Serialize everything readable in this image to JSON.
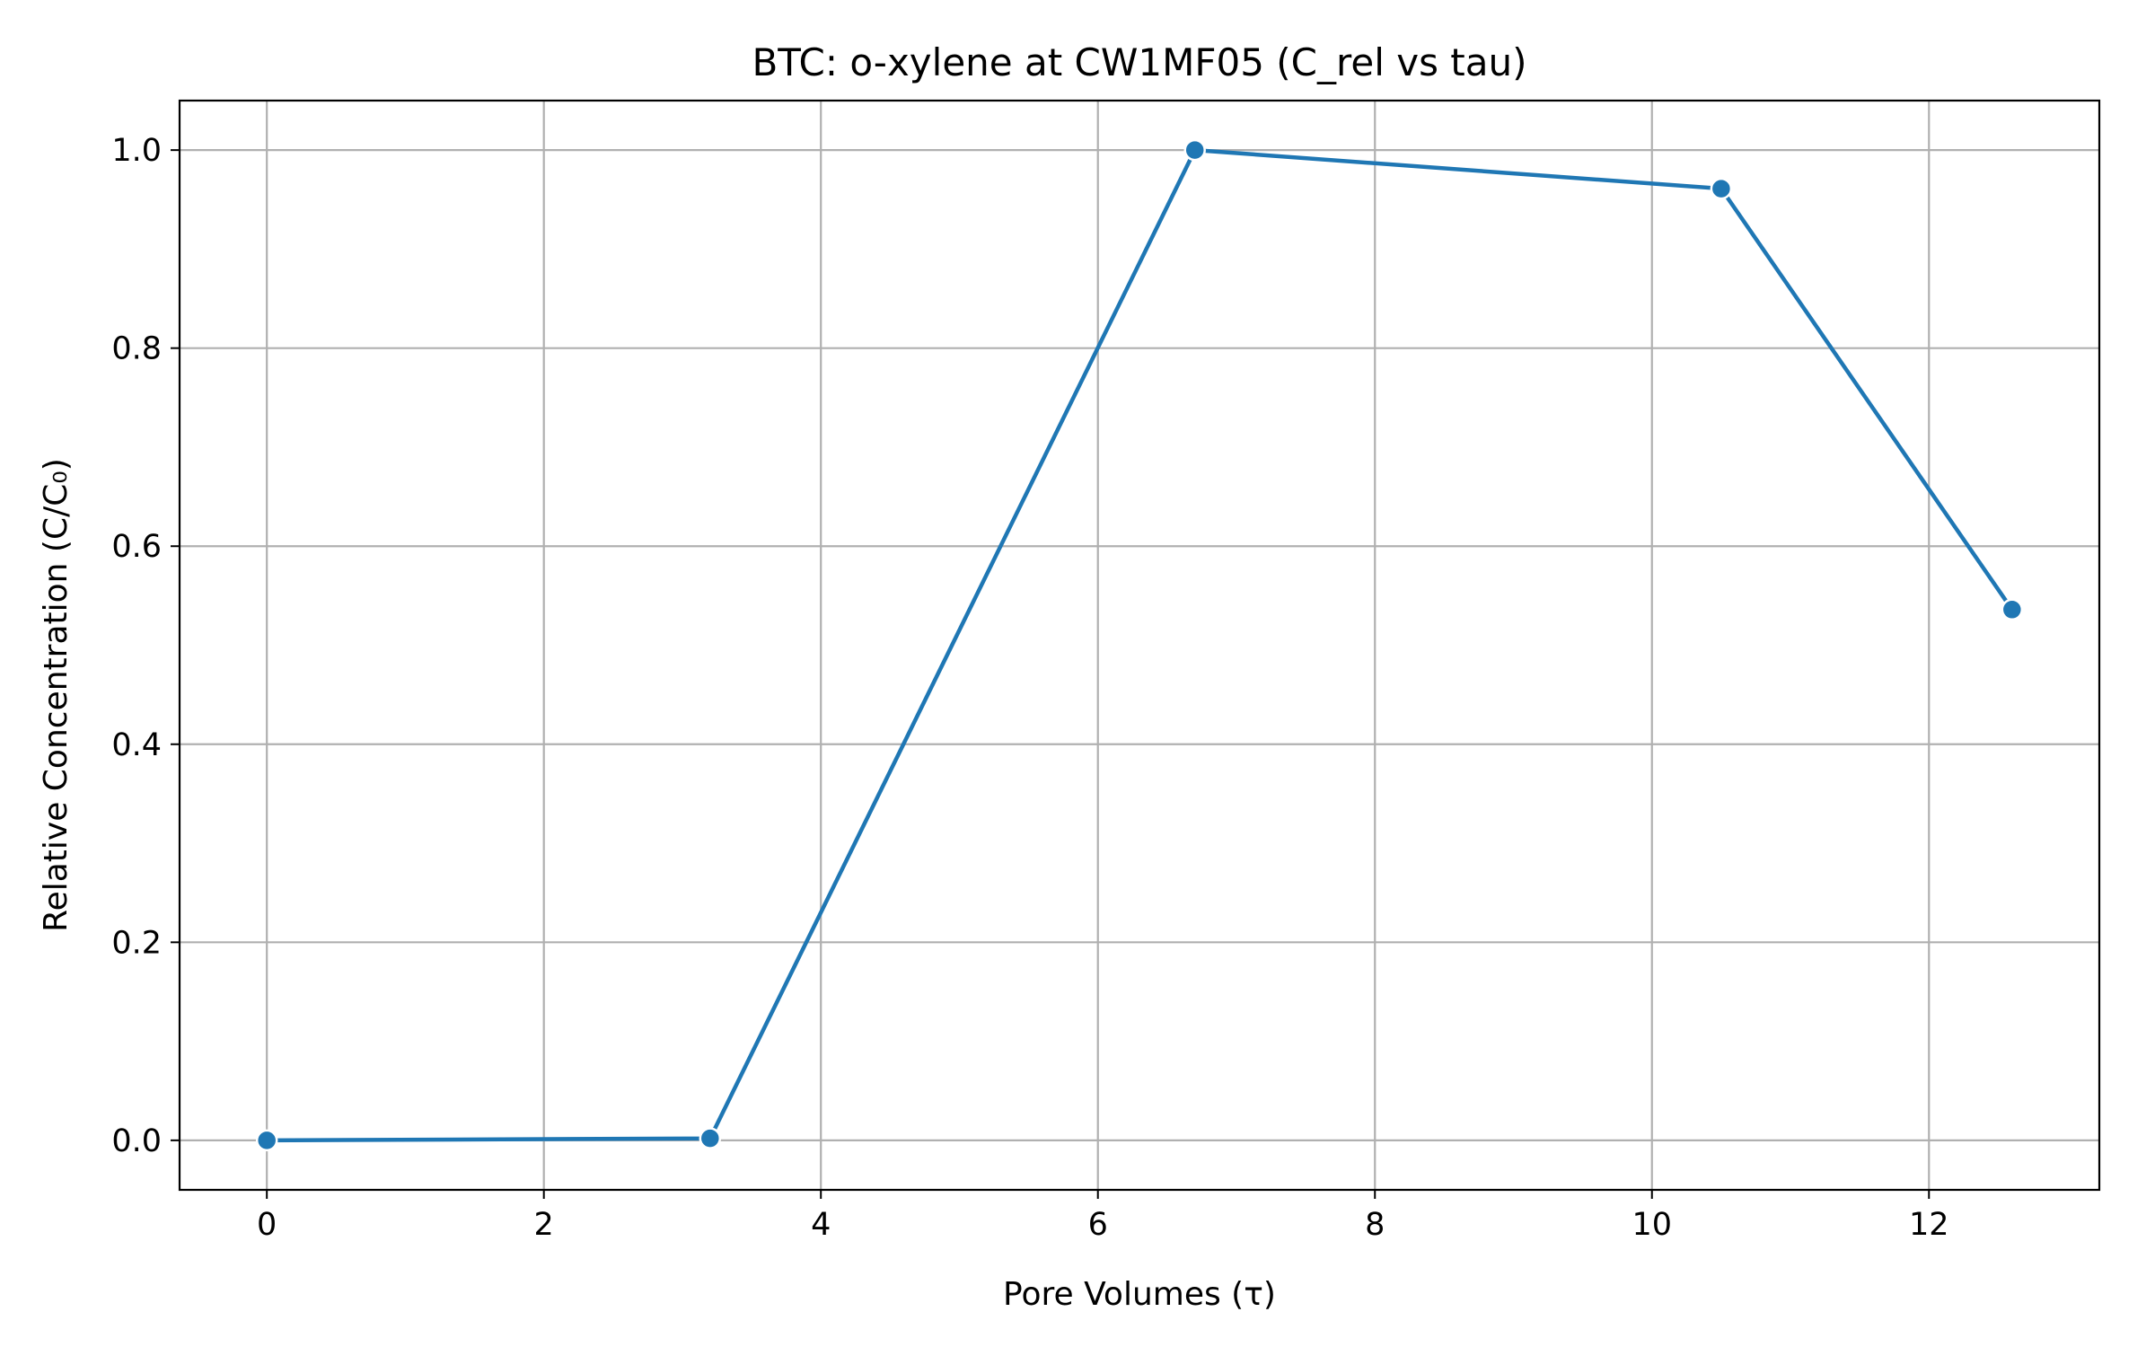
{
  "chart_data": {
    "type": "line",
    "title": "BTC: o-xylene at CW1MF05 (C_rel vs tau)",
    "xlabel": "Pore Volumes (τ)",
    "ylabel": "Relative Concentration (C/C₀)",
    "xlim": [
      -0.63,
      13.23
    ],
    "ylim": [
      -0.05,
      1.05
    ],
    "xticks": [
      0,
      2,
      4,
      6,
      8,
      10,
      12
    ],
    "xtick_labels": [
      "0",
      "2",
      "4",
      "6",
      "8",
      "10",
      "12"
    ],
    "yticks": [
      0.0,
      0.2,
      0.4,
      0.6,
      0.8,
      1.0
    ],
    "ytick_labels": [
      "0.0",
      "0.2",
      "0.4",
      "0.6",
      "0.8",
      "1.0"
    ],
    "grid": true,
    "series": [
      {
        "color": "#1f77b4",
        "marker": "circle",
        "x": [
          0.0,
          3.2,
          6.7,
          10.5,
          12.6
        ],
        "y": [
          0.0,
          0.002,
          1.0,
          0.961,
          0.536
        ]
      }
    ]
  }
}
